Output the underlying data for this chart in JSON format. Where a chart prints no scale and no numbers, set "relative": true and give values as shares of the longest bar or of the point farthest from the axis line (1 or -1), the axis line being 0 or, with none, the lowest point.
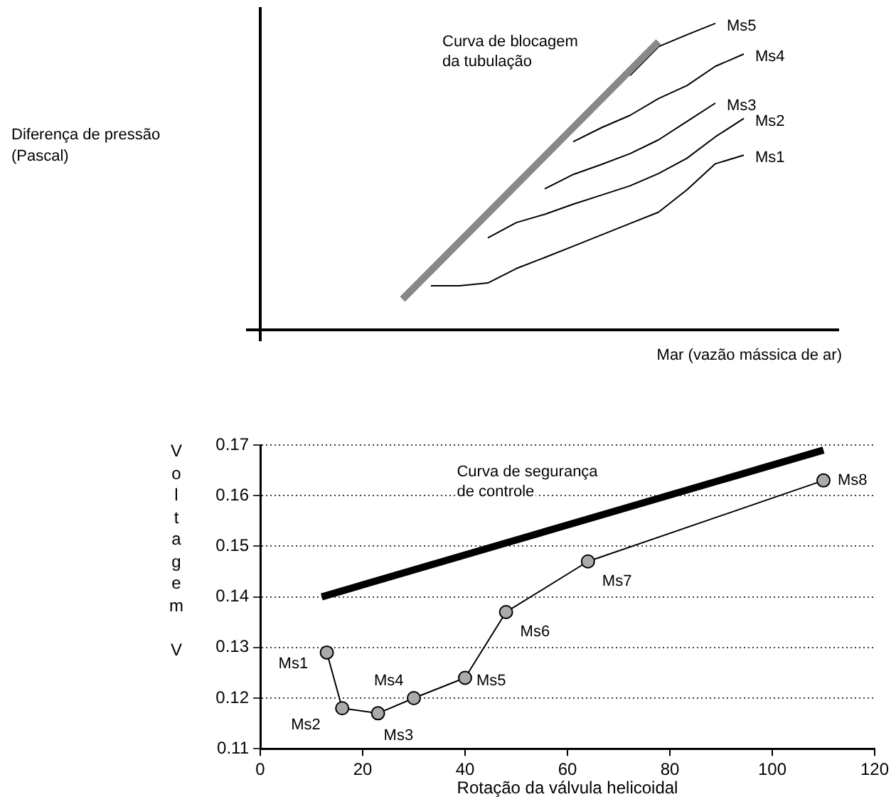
{
  "chart_data": [
    {
      "type": "line",
      "relative": true,
      "tick_labels": false,
      "ylabel": "Diferença de pressão (Pascal)",
      "xlabel": "Mar (vazão mássica de ar)",
      "categories": [
        null,
        null,
        null,
        null,
        null,
        null,
        null,
        null,
        null,
        null,
        null,
        null,
        null,
        null,
        null,
        null,
        null,
        null,
        null,
        null,
        null
      ],
      "series": [
        {
          "name": "Curva de blocagem da tubulação",
          "color": "#888888",
          "values": [
            null,
            null,
            null,
            null,
            null,
            0.1,
            null,
            null,
            null,
            null,
            null,
            null,
            null,
            null,
            0.94,
            null,
            null,
            null,
            null,
            null,
            null
          ]
        },
        {
          "name": "Ms1",
          "color": "#000000",
          "values": [
            null,
            null,
            null,
            null,
            null,
            null,
            0.144,
            0.144,
            0.153,
            0.2,
            0.236,
            0.273,
            0.31,
            0.347,
            0.384,
            0.457,
            0.542,
            0.57,
            null,
            null,
            null
          ]
        },
        {
          "name": "Ms2",
          "color": "#000000",
          "values": [
            null,
            null,
            null,
            null,
            null,
            null,
            null,
            null,
            0.3,
            0.35,
            0.377,
            0.41,
            0.44,
            0.47,
            0.51,
            0.56,
            0.63,
            0.69,
            null,
            null,
            null
          ]
        },
        {
          "name": "Ms3",
          "color": "#000000",
          "values": [
            null,
            null,
            null,
            null,
            null,
            null,
            null,
            null,
            null,
            null,
            0.46,
            0.507,
            0.54,
            0.575,
            0.62,
            0.68,
            0.74,
            null,
            null,
            null,
            null
          ]
        },
        {
          "name": "Ms4",
          "color": "#000000",
          "values": [
            null,
            null,
            null,
            null,
            null,
            null,
            null,
            null,
            null,
            null,
            null,
            0.614,
            0.66,
            0.7,
            0.755,
            0.797,
            0.86,
            0.9,
            null,
            null,
            null
          ]
        },
        {
          "name": "Ms5",
          "color": "#000000",
          "values": [
            null,
            null,
            null,
            null,
            null,
            null,
            null,
            null,
            null,
            null,
            null,
            null,
            null,
            0.83,
            0.924,
            0.963,
            1.0,
            null,
            null,
            null,
            null
          ]
        }
      ]
    },
    {
      "type": "line",
      "xlabel": "Rotação da válvula helicoidal",
      "ylabel": "Voltagem V",
      "xlim": [
        0,
        120
      ],
      "xticks": [
        0,
        20,
        40,
        60,
        80,
        100,
        120
      ],
      "ylim": [
        0.11,
        0.17
      ],
      "yticks": [
        0.11,
        0.12,
        0.13,
        0.14,
        0.15,
        0.16,
        0.17
      ],
      "grid": "y",
      "series": [
        {
          "name": "Curva de segurança de controle",
          "color": "#000000",
          "x": [
            12,
            110
          ],
          "values": [
            0.14,
            0.169
          ]
        },
        {
          "color": "#000000",
          "marker": "circle",
          "x": [
            13,
            16,
            23,
            30,
            40,
            48,
            64,
            110
          ],
          "values": [
            0.129,
            0.118,
            0.117,
            0.12,
            0.124,
            0.137,
            0.147,
            0.163
          ]
        }
      ],
      "annotations": [
        {
          "text": "Ms1",
          "x": 13,
          "y": 0.129
        },
        {
          "text": "Ms2",
          "x": 16,
          "y": 0.118
        },
        {
          "text": "Ms3",
          "x": 23,
          "y": 0.117
        },
        {
          "text": "Ms4",
          "x": 30,
          "y": 0.12
        },
        {
          "text": "Ms5",
          "x": 40,
          "y": 0.124
        },
        {
          "text": "Ms6",
          "x": 48,
          "y": 0.137
        },
        {
          "text": "Ms7",
          "x": 64,
          "y": 0.147
        },
        {
          "text": "Ms8",
          "x": 110,
          "y": 0.163
        }
      ]
    }
  ]
}
